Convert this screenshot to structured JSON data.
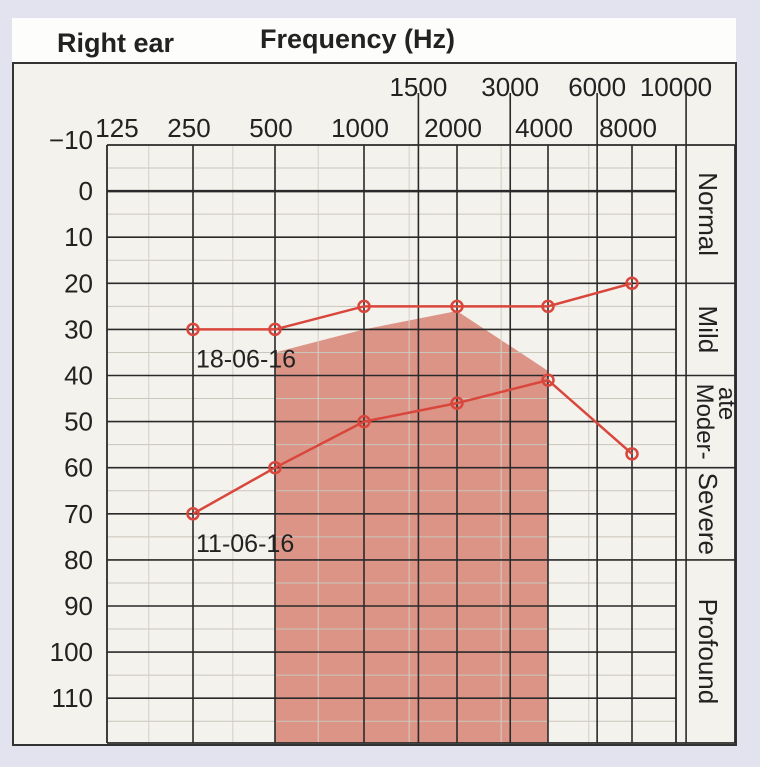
{
  "chart_data": {
    "type": "line",
    "title": "Right ear",
    "xlabel": "Frequency (Hz)",
    "ylabel": "",
    "x_scale": "log",
    "x_ticks_lower": [
      125,
      250,
      500,
      1000,
      2000,
      4000,
      8000
    ],
    "x_ticks_upper": [
      1500,
      3000,
      6000,
      10000
    ],
    "y_ticks": [
      -10,
      0,
      10,
      20,
      30,
      40,
      50,
      60,
      70,
      80,
      90,
      100,
      110
    ],
    "ylim": [
      -10,
      120
    ],
    "y_inverted": true,
    "grid": true,
    "categories": [
      {
        "label": "Normal",
        "range": [
          -10,
          20
        ]
      },
      {
        "label": "Mild",
        "range": [
          20,
          40
        ]
      },
      {
        "label": "Moder-",
        "label2": "ate",
        "range": [
          40,
          60
        ]
      },
      {
        "label": "Severe",
        "range": [
          60,
          80
        ]
      },
      {
        "label": "Profound",
        "range": [
          80,
          120
        ]
      }
    ],
    "shaded_region": {
      "color": "#d98a7c",
      "points": [
        [
          500,
          120
        ],
        [
          500,
          35
        ],
        [
          1000,
          30
        ],
        [
          2000,
          26
        ],
        [
          4000,
          39
        ],
        [
          4000,
          120
        ]
      ]
    },
    "series": [
      {
        "name": "18-06-16",
        "color": "#d9463c",
        "x": [
          250,
          500,
          1000,
          2000,
          4000,
          8000
        ],
        "y": [
          30,
          30,
          25,
          25,
          25,
          20
        ]
      },
      {
        "name": "11-06-16",
        "color": "#d9463c",
        "x": [
          250,
          500,
          1000,
          2000,
          4000,
          8000
        ],
        "y": [
          70,
          60,
          50,
          46,
          41,
          57
        ]
      }
    ]
  }
}
